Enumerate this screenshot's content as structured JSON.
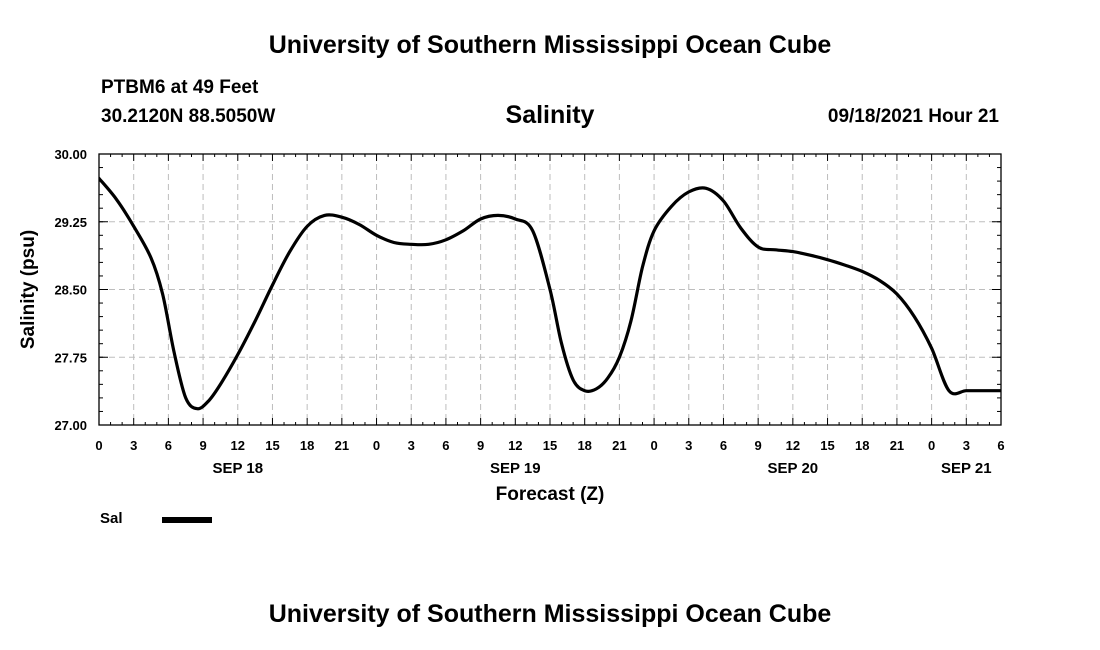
{
  "header": {
    "top_title": "University of Southern Mississippi Ocean Cube",
    "station": "PTBM6 at 49 Feet",
    "coords": "30.2120N  88.5050W",
    "chart_title": "Salinity",
    "datetime": "09/18/2021 Hour 21"
  },
  "footer": {
    "bottom_title": "University of Southern Mississippi Ocean Cube"
  },
  "legend": {
    "label": "Sal",
    "color": "#000000"
  },
  "chart_data": {
    "type": "line",
    "title": "Salinity",
    "xlabel": "Forecast (Z)",
    "ylabel": "Salinity (psu)",
    "xlim": [
      0,
      78
    ],
    "ylim": [
      27.0,
      30.0
    ],
    "y_ticks": [
      "30.00",
      "29.25",
      "28.50",
      "27.75",
      "27.00"
    ],
    "y_tick_values": [
      30.0,
      29.25,
      28.5,
      27.75,
      27.0
    ],
    "x_tick_labels": [
      "0",
      "3",
      "6",
      "9",
      "12",
      "15",
      "18",
      "21",
      "0",
      "3",
      "6",
      "9",
      "12",
      "15",
      "18",
      "21",
      "0",
      "3",
      "6",
      "9",
      "12",
      "15",
      "18",
      "21",
      "0",
      "3",
      "6"
    ],
    "date_labels": [
      {
        "label": "SEP 18",
        "hour": 12
      },
      {
        "label": "SEP 19",
        "hour": 36
      },
      {
        "label": "SEP 20",
        "hour": 60
      },
      {
        "label": "SEP 21",
        "hour": 75
      }
    ],
    "grid": true,
    "series": [
      {
        "name": "Sal",
        "x": [
          0,
          1.5,
          3,
          4.5,
          5.5,
          6.5,
          7.5,
          8.5,
          9.5,
          10.5,
          12,
          13.5,
          15,
          16.5,
          18,
          19.5,
          21,
          22.5,
          24,
          25.5,
          27,
          28.5,
          30,
          31.5,
          33,
          34.5,
          36,
          37.5,
          39,
          40,
          41,
          42,
          43,
          44,
          45,
          46,
          47,
          48,
          49.5,
          51,
          52.5,
          54,
          55.5,
          57,
          58.5,
          60,
          61.5,
          63,
          64.5,
          66,
          67.5,
          69,
          70.5,
          72,
          73.5,
          75,
          76.5,
          78
        ],
        "values": [
          29.73,
          29.5,
          29.2,
          28.85,
          28.45,
          27.8,
          27.3,
          27.18,
          27.27,
          27.45,
          27.78,
          28.15,
          28.55,
          28.92,
          29.2,
          29.32,
          29.3,
          29.22,
          29.1,
          29.02,
          29.0,
          29.0,
          29.05,
          29.15,
          29.28,
          29.32,
          29.28,
          29.15,
          28.5,
          27.9,
          27.5,
          27.38,
          27.4,
          27.52,
          27.75,
          28.15,
          28.75,
          29.15,
          29.42,
          29.58,
          29.62,
          29.48,
          29.18,
          28.97,
          28.94,
          28.92,
          28.88,
          28.83,
          28.77,
          28.7,
          28.6,
          28.45,
          28.2,
          27.85,
          27.38,
          27.38,
          27.38,
          27.38
        ]
      }
    ]
  }
}
